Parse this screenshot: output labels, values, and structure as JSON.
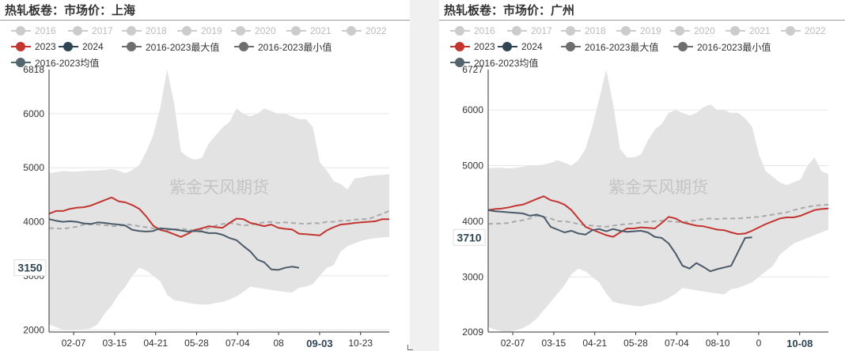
{
  "chart_data": [
    {
      "type": "line",
      "title": "热轧板卷：市场价：上海",
      "watermark": "紫金天风期货",
      "ylim": [
        1960,
        6818
      ],
      "yticks": [
        2000,
        3000,
        4000,
        5000,
        6000
      ],
      "ytop_label": "6818",
      "x_tick_labels": [
        "02-07",
        "03-15",
        "04-21",
        "05-28",
        "07-04",
        "08",
        "09-03",
        "10-23"
      ],
      "crosshair_x_label": "09-03",
      "crosshair_y_label": "3150",
      "grid": true,
      "legend": {
        "placement": "top",
        "items": [
          {
            "name": "2016",
            "color": "#cccccc",
            "enabled": false
          },
          {
            "name": "2017",
            "color": "#cccccc",
            "enabled": false
          },
          {
            "name": "2018",
            "color": "#cccccc",
            "enabled": false
          },
          {
            "name": "2019",
            "color": "#cccccc",
            "enabled": false
          },
          {
            "name": "2020",
            "color": "#cccccc",
            "enabled": false
          },
          {
            "name": "2021",
            "color": "#cccccc",
            "enabled": false
          },
          {
            "name": "2022",
            "color": "#cccccc",
            "enabled": false
          },
          {
            "name": "2023",
            "color": "#c23531",
            "enabled": true
          },
          {
            "name": "2024",
            "color": "#2f4554",
            "enabled": true
          },
          {
            "name": "2016-2023最大值",
            "color": "#6e6e6e",
            "enabled": true
          },
          {
            "name": "2016-2023最小值",
            "color": "#6e6e6e",
            "enabled": true
          },
          {
            "name": "2016-2023均值",
            "color": "#546570",
            "enabled": true
          }
        ]
      },
      "colors": {
        "max_min_band": "#e3e3e3",
        "y2023": "#c23531",
        "y2024": "#4a5a68",
        "avg": "#aaaaaa"
      },
      "series": [
        {
          "key": "max",
          "values": [
            4900,
            4920,
            4940,
            4930,
            4930,
            4940,
            4950,
            4950,
            4960,
            4980,
            4950,
            4900,
            4960,
            5050,
            5300,
            5600,
            6100,
            6818,
            6200,
            5300,
            5200,
            5150,
            5180,
            5450,
            5600,
            5750,
            5850,
            6100,
            6000,
            5950,
            6000,
            6100,
            6050,
            6000,
            6000,
            5950,
            5900,
            5900,
            5750,
            5100,
            4950,
            4750,
            4700,
            4600,
            4800,
            4820,
            4850,
            4860,
            4870,
            4880
          ]
        },
        {
          "key": "min",
          "values": [
            2100,
            2050,
            2000,
            1990,
            2000,
            2010,
            2030,
            2100,
            2300,
            2450,
            2650,
            2800,
            3000,
            3150,
            3100,
            3000,
            2900,
            2650,
            2550,
            2530,
            2500,
            2480,
            2470,
            2470,
            2500,
            2520,
            2560,
            2620,
            2700,
            2800,
            2780,
            2760,
            2740,
            2720,
            2700,
            2690,
            2780,
            2800,
            2850,
            3000,
            3150,
            3200,
            3450,
            3550,
            3600,
            3650,
            3680,
            3700,
            3710,
            3720
          ]
        },
        {
          "key": "2023",
          "values": [
            4150,
            4200,
            4200,
            4240,
            4260,
            4270,
            4300,
            4350,
            4400,
            4450,
            4380,
            4360,
            4310,
            4240,
            4100,
            3930,
            3850,
            3820,
            3770,
            3720,
            3780,
            3850,
            3880,
            3920,
            3900,
            3890,
            3980,
            4060,
            4050,
            3980,
            3950,
            3920,
            3950,
            3890,
            3870,
            3860,
            3780,
            3770,
            3760,
            3750,
            3840,
            3900,
            3950,
            3960,
            3980,
            3990,
            4000,
            4010,
            4050,
            4050
          ]
        },
        {
          "key": "2024",
          "values": [
            4050,
            4020,
            4000,
            4010,
            4000,
            3970,
            3960,
            3990,
            3980,
            3960,
            3950,
            3930,
            3850,
            3830,
            3820,
            3830,
            3880,
            3870,
            3860,
            3840,
            3820,
            3830,
            3820,
            3790,
            3790,
            3760,
            3700,
            3660,
            3550,
            3450,
            3300,
            3250,
            3120,
            3110,
            3150,
            3170,
            3150,
            null,
            null,
            null,
            null,
            null,
            null,
            null,
            null,
            null,
            null,
            null,
            null,
            null
          ]
        },
        {
          "key": "avg",
          "values": [
            3880,
            3880,
            3870,
            3890,
            3910,
            3950,
            3950,
            3950,
            3940,
            3920,
            3920,
            3960,
            3940,
            3920,
            3900,
            3880,
            3860,
            3850,
            3860,
            3870,
            3860,
            3840,
            3850,
            3880,
            3930,
            3960,
            3980,
            3960,
            3930,
            3950,
            3970,
            3990,
            4000,
            3980,
            3990,
            3980,
            3970,
            3960,
            3980,
            3970,
            4000,
            4000,
            4020,
            4020,
            4040,
            4050,
            4050,
            4100,
            4150,
            4200
          ]
        }
      ]
    },
    {
      "type": "line",
      "title": "热轧板卷：市场价：广州",
      "watermark": "紫金天风期货",
      "ylim": [
        2009,
        6727
      ],
      "yticks": [
        3000,
        4000,
        5000,
        6000
      ],
      "ytop_label": "6727",
      "ybottom_label": "2009",
      "x_tick_labels": [
        "02-07",
        "03-15",
        "04-21",
        "05-28",
        "07-04",
        "08-10",
        "0",
        "10-08"
      ],
      "crosshair_x_label": "10-08",
      "crosshair_y_label": "3710",
      "grid": true,
      "legend": {
        "placement": "top",
        "items": [
          {
            "name": "2016",
            "color": "#cccccc",
            "enabled": false
          },
          {
            "name": "2017",
            "color": "#cccccc",
            "enabled": false
          },
          {
            "name": "2018",
            "color": "#cccccc",
            "enabled": false
          },
          {
            "name": "2019",
            "color": "#cccccc",
            "enabled": false
          },
          {
            "name": "2020",
            "color": "#cccccc",
            "enabled": false
          },
          {
            "name": "2021",
            "color": "#cccccc",
            "enabled": false
          },
          {
            "name": "2022",
            "color": "#cccccc",
            "enabled": false
          },
          {
            "name": "2023",
            "color": "#c23531",
            "enabled": true
          },
          {
            "name": "2024",
            "color": "#2f4554",
            "enabled": true
          },
          {
            "name": "2016-2023最大值",
            "color": "#6e6e6e",
            "enabled": true
          },
          {
            "name": "2016-2023最小值",
            "color": "#6e6e6e",
            "enabled": true
          },
          {
            "name": "2016-2023均值",
            "color": "#546570",
            "enabled": true
          }
        ]
      },
      "colors": {
        "max_min_band": "#e3e3e3",
        "y2023": "#c23531",
        "y2024": "#4a5a68",
        "avg": "#aaaaaa"
      },
      "series": [
        {
          "key": "max",
          "values": [
            4950,
            4960,
            4960,
            4950,
            4960,
            4980,
            5000,
            5000,
            5020,
            5050,
            5100,
            5050,
            5000,
            5100,
            5300,
            5700,
            6200,
            6727,
            6100,
            5300,
            5150,
            5150,
            5200,
            5450,
            5650,
            5750,
            5950,
            6000,
            5950,
            5900,
            5950,
            6050,
            6100,
            6000,
            6000,
            5950,
            5950,
            5850,
            5700,
            5200,
            4900,
            4800,
            4700,
            4650,
            4700,
            4750,
            5000,
            5150,
            4900,
            4850
          ]
        },
        {
          "key": "min",
          "values": [
            2100,
            2050,
            2020,
            2010,
            2040,
            2080,
            2150,
            2250,
            2400,
            2550,
            2700,
            2850,
            3050,
            3150,
            3100,
            3000,
            2900,
            2700,
            2550,
            2520,
            2500,
            2480,
            2470,
            2500,
            2520,
            2560,
            2620,
            2700,
            2800,
            2780,
            2760,
            2740,
            2720,
            2700,
            2690,
            2780,
            2800,
            2850,
            2900,
            3000,
            3100,
            3200,
            3400,
            3500,
            3600,
            3650,
            3700,
            3750,
            3800,
            3850
          ]
        },
        {
          "key": "2023",
          "values": [
            4200,
            4220,
            4230,
            4250,
            4280,
            4300,
            4350,
            4400,
            4450,
            4380,
            4350,
            4300,
            4200,
            4050,
            3900,
            3850,
            3800,
            3750,
            3720,
            3800,
            3870,
            3870,
            3890,
            3880,
            3870,
            3970,
            4080,
            4050,
            3980,
            3950,
            3920,
            3910,
            3880,
            3850,
            3840,
            3800,
            3770,
            3780,
            3830,
            3890,
            3950,
            4000,
            4050,
            4070,
            4070,
            4100,
            4150,
            4200,
            4220,
            4230
          ]
        },
        {
          "key": "2024",
          "values": [
            4200,
            4180,
            4170,
            4160,
            4150,
            4140,
            4100,
            4120,
            4080,
            3900,
            3850,
            3800,
            3830,
            3780,
            3760,
            3840,
            3860,
            3820,
            3860,
            3830,
            3810,
            3820,
            3830,
            3800,
            3720,
            3700,
            3600,
            3420,
            3200,
            3150,
            3250,
            3180,
            3100,
            3140,
            3170,
            3200,
            3450,
            3700,
            3710,
            null,
            null,
            null,
            null,
            null,
            null,
            null,
            null,
            null,
            null,
            null
          ]
        },
        {
          "key": "avg",
          "values": [
            3950,
            3960,
            3960,
            3970,
            4000,
            4020,
            4050,
            4100,
            4080,
            4050,
            4000,
            4000,
            3980,
            3950,
            3930,
            3920,
            3910,
            3900,
            3920,
            3940,
            3950,
            3960,
            3980,
            3990,
            4000,
            4010,
            4000,
            3990,
            3980,
            4000,
            4020,
            4040,
            4050,
            4040,
            4050,
            4050,
            4050,
            4060,
            4070,
            4080,
            4100,
            4120,
            4140,
            4160,
            4200,
            4230,
            4260,
            4280,
            4290,
            4300
          ]
        }
      ]
    }
  ]
}
